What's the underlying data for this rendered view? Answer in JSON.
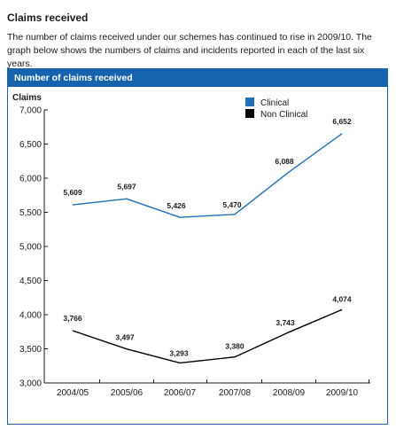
{
  "section": {
    "title": "Claims received",
    "intro": "The number of claims received under our schemes has continued to rise in 2009/10. The graph below shows the numbers of claims and incidents reported in each of the last six years."
  },
  "chart_data": {
    "type": "line",
    "title": "Number of claims received",
    "ylabel": "Claims",
    "xlabel": "",
    "categories": [
      "2004/05",
      "2005/06",
      "2006/07",
      "2007/08",
      "2008/09",
      "2009/10"
    ],
    "ylim": [
      3000,
      7000
    ],
    "yticks": [
      3000,
      3500,
      4000,
      4500,
      5000,
      5500,
      6000,
      6500,
      7000
    ],
    "ytick_labels": [
      "3,000",
      "3,500",
      "4,000",
      "4,500",
      "5,000",
      "5,500",
      "6,000",
      "6,500",
      "7,000"
    ],
    "grid": false,
    "legend": "top-right",
    "series": [
      {
        "name": "Clinical",
        "color": "#1f6fb8",
        "values": [
          5609,
          5697,
          5426,
          5470,
          6088,
          6652
        ],
        "labels": [
          "5,609",
          "5,697",
          "5,426",
          "5,470",
          "6,088",
          "6,652"
        ]
      },
      {
        "name": "Non Clinical",
        "color": "#000000",
        "values": [
          3766,
          3497,
          3293,
          3380,
          3743,
          4074
        ],
        "labels": [
          "3,766",
          "3,497",
          "3,293",
          "3,380",
          "3,743",
          "4,074"
        ]
      }
    ]
  }
}
